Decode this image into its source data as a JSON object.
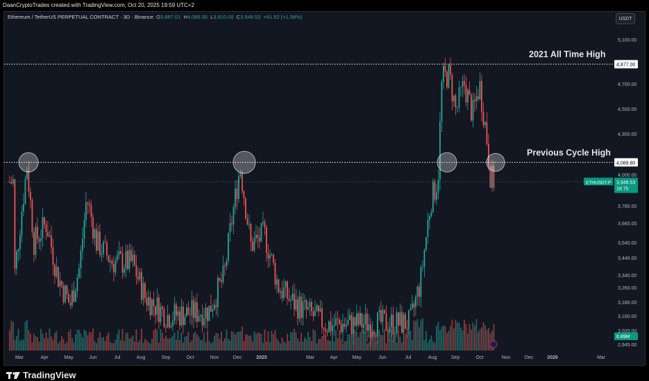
{
  "header": {
    "credit": "DaanCryptoTrades created with TradingView.com, Oct 20, 2025 19:59 UTC+2"
  },
  "legend": {
    "symbol": "Ethereum / TetherUS PERPETUAL CONTRACT · 3D · Binance",
    "o_label": "O",
    "o_value": "3,887.01",
    "h_label": "H",
    "h_value": "4,085.00",
    "l_label": "L",
    "l_value": "3,810.00",
    "c_label": "C",
    "c_value": "3,948.53",
    "change": "+61.52 (+1.58%)"
  },
  "currency_button": "USDT",
  "footer": {
    "brand": "TradingView"
  },
  "chart_data": {
    "type": "candlestick",
    "y_axis": {
      "ticks": [
        "5,100.00",
        "4,700.00",
        "4,500.00",
        "4,300.00",
        "4,000.00",
        "3,780.00",
        "3,660.00",
        "3,540.00",
        "3,440.00",
        "3,340.00",
        "3,260.00",
        "3,180.00",
        "3,100.00",
        "3,020.00",
        "2,945.00"
      ],
      "scale": "log"
    },
    "x_axis": {
      "ticks": [
        "Mar",
        "Apr",
        "May",
        "Jun",
        "Jul",
        "Aug",
        "Sep",
        "Oct",
        "Nov",
        "Dec",
        "2025",
        "Mar",
        "Apr",
        "May",
        "Jun",
        "Jul",
        "Aug",
        "Sep",
        "Oct",
        "Nov",
        "Dec",
        "2026",
        "Mar"
      ]
    },
    "levels": [
      {
        "name": "2021 All Time High",
        "value": 4877.0,
        "label": "4,877.00"
      },
      {
        "name": "Previous Cycle High",
        "value": 4089.8,
        "label": "4,089.80"
      }
    ],
    "last_price": {
      "label": "ETHUSDT.P",
      "value": "3,948.53",
      "countdown": "1d 7h"
    },
    "volume_label": "6.89M",
    "colors": {
      "up": "#26a69a",
      "down": "#ef5350",
      "background": "#131722",
      "tag_bg": "#089981"
    },
    "circles_at": [
      "Mar",
      "Dec",
      "Aug-Sep 2025",
      "Oct 2025"
    ]
  }
}
